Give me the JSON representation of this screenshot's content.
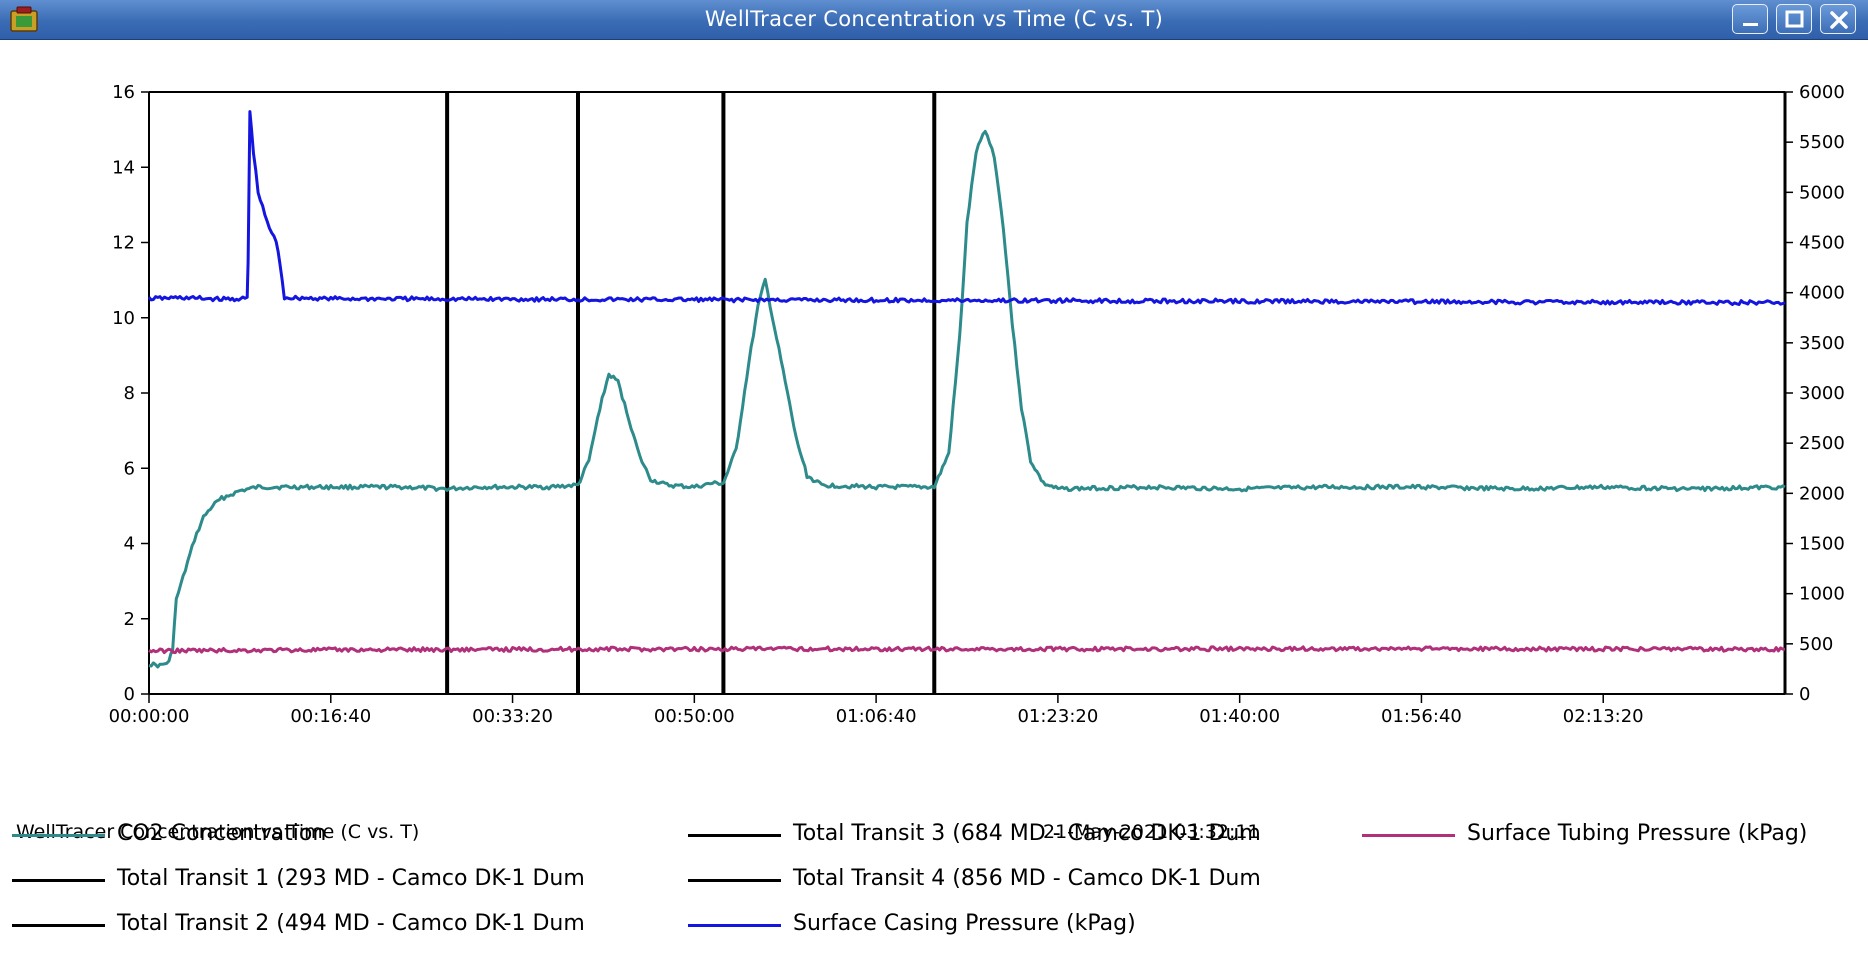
{
  "window": {
    "title": "WellTracer Concentration vs Time (C vs. T)"
  },
  "footer": {
    "title": "WellTracer Concentration vs Time (C vs. T)",
    "timestamp": "21-May-2021 03:32:11"
  },
  "legend": [
    {
      "label": "CO2 Concentration",
      "color": "#2e8b8b"
    },
    {
      "label": "Total Transit 1 (293 MD - Camco DK-1 Dum",
      "color": "#000000"
    },
    {
      "label": "Total Transit 2 (494 MD - Camco DK-1 Dum",
      "color": "#000000"
    },
    {
      "label": "Total Transit 3 (684 MD - Camco DK-1 Dum",
      "color": "#000000"
    },
    {
      "label": "Total Transit 4 (856 MD - Camco DK-1 Dum",
      "color": "#000000"
    },
    {
      "label": "Surface Casing Pressure (kPag)",
      "color": "#1515e0"
    },
    {
      "label": "Surface Tubing Pressure (kPag)",
      "color": "#b0307a"
    }
  ],
  "chart_data": {
    "type": "line",
    "title": "WellTracer Concentration vs Time (C vs. T)",
    "x_unit": "seconds (elapsed, shown as hh:mm:ss)",
    "xlim": [
      0,
      9000
    ],
    "x_ticks": [
      {
        "value": 0,
        "label": "00:00:00"
      },
      {
        "value": 1000,
        "label": "00:16:40"
      },
      {
        "value": 2000,
        "label": "00:33:20"
      },
      {
        "value": 3000,
        "label": "00:50:00"
      },
      {
        "value": 4000,
        "label": "01:06:40"
      },
      {
        "value": 5000,
        "label": "01:23:20"
      },
      {
        "value": 6000,
        "label": "01:40:00"
      },
      {
        "value": 7000,
        "label": "01:56:40"
      },
      {
        "value": 8000,
        "label": "02:13:20"
      }
    ],
    "y_left": {
      "ylim": [
        0,
        16
      ],
      "ticks": [
        "0",
        "2",
        "4",
        "6",
        "8",
        "10",
        "12",
        "14",
        "16"
      ]
    },
    "y_right": {
      "ylim": [
        0,
        6000
      ],
      "ticks": [
        "0",
        "500",
        "1000",
        "1500",
        "2000",
        "2500",
        "3000",
        "3500",
        "4000",
        "4500",
        "5000",
        "5500",
        "6000"
      ]
    },
    "grid": false,
    "vertical_markers": [
      {
        "name": "Total Transit 1 (293 MD - Camco DK-1 Dum",
        "x": 1640
      },
      {
        "name": "Total Transit 2 (494 MD - Camco DK-1 Dum",
        "x": 2360
      },
      {
        "name": "Total Transit 3 (684 MD - Camco DK-1 Dum",
        "x": 3160
      },
      {
        "name": "Total Transit 4 (856 MD - Camco DK-1 Dum",
        "x": 4320
      }
    ],
    "series": [
      {
        "name": "CO2 Concentration",
        "axis": "left",
        "color": "#2e8b8b",
        "points": [
          [
            0,
            0.8
          ],
          [
            60,
            0.75
          ],
          [
            110,
            0.85
          ],
          [
            130,
            1.2
          ],
          [
            150,
            2.5
          ],
          [
            200,
            3.3
          ],
          [
            250,
            4.1
          ],
          [
            300,
            4.7
          ],
          [
            350,
            5.0
          ],
          [
            400,
            5.2
          ],
          [
            450,
            5.3
          ],
          [
            500,
            5.4
          ],
          [
            600,
            5.5
          ],
          [
            800,
            5.5
          ],
          [
            1000,
            5.5
          ],
          [
            1200,
            5.5
          ],
          [
            1400,
            5.5
          ],
          [
            1640,
            5.45
          ],
          [
            1800,
            5.5
          ],
          [
            2000,
            5.5
          ],
          [
            2200,
            5.5
          ],
          [
            2360,
            5.55
          ],
          [
            2420,
            6.2
          ],
          [
            2480,
            7.6
          ],
          [
            2530,
            8.5
          ],
          [
            2580,
            8.3
          ],
          [
            2640,
            7.3
          ],
          [
            2700,
            6.3
          ],
          [
            2760,
            5.7
          ],
          [
            2850,
            5.55
          ],
          [
            3000,
            5.5
          ],
          [
            3100,
            5.6
          ],
          [
            3160,
            5.6
          ],
          [
            3230,
            6.5
          ],
          [
            3300,
            8.8
          ],
          [
            3350,
            10.3
          ],
          [
            3390,
            11.0
          ],
          [
            3430,
            10.0
          ],
          [
            3500,
            8.3
          ],
          [
            3560,
            6.8
          ],
          [
            3620,
            5.8
          ],
          [
            3700,
            5.55
          ],
          [
            4000,
            5.5
          ],
          [
            4200,
            5.5
          ],
          [
            4320,
            5.5
          ],
          [
            4400,
            6.4
          ],
          [
            4460,
            9.5
          ],
          [
            4500,
            12.5
          ],
          [
            4550,
            14.4
          ],
          [
            4600,
            15.0
          ],
          [
            4650,
            14.3
          ],
          [
            4700,
            12.4
          ],
          [
            4750,
            9.8
          ],
          [
            4800,
            7.6
          ],
          [
            4850,
            6.2
          ],
          [
            4920,
            5.6
          ],
          [
            5000,
            5.45
          ],
          [
            5500,
            5.5
          ],
          [
            6000,
            5.45
          ],
          [
            6500,
            5.5
          ],
          [
            7000,
            5.5
          ],
          [
            7500,
            5.45
          ],
          [
            8000,
            5.5
          ],
          [
            8500,
            5.45
          ],
          [
            9000,
            5.5
          ]
        ]
      },
      {
        "name": "Surface Casing Pressure (kPag)",
        "axis": "right",
        "color": "#1515e0",
        "points": [
          [
            0,
            3940
          ],
          [
            170,
            3950
          ],
          [
            400,
            3935
          ],
          [
            540,
            3940
          ],
          [
            545,
            4300
          ],
          [
            555,
            5800
          ],
          [
            575,
            5400
          ],
          [
            600,
            5000
          ],
          [
            650,
            4700
          ],
          [
            700,
            4500
          ],
          [
            720,
            4300
          ],
          [
            745,
            3950
          ],
          [
            1000,
            3940
          ],
          [
            2000,
            3935
          ],
          [
            3000,
            3930
          ],
          [
            4000,
            3925
          ],
          [
            5000,
            3920
          ],
          [
            6000,
            3915
          ],
          [
            7000,
            3910
          ],
          [
            8000,
            3905
          ],
          [
            9000,
            3900
          ]
        ]
      },
      {
        "name": "Surface Tubing Pressure (kPag)",
        "axis": "right",
        "color": "#b0307a",
        "points": [
          [
            0,
            430
          ],
          [
            1000,
            440
          ],
          [
            2000,
            445
          ],
          [
            3000,
            448
          ],
          [
            4000,
            450
          ],
          [
            5000,
            448
          ],
          [
            6000,
            450
          ],
          [
            7000,
            450
          ],
          [
            8000,
            448
          ],
          [
            9000,
            445
          ]
        ]
      }
    ]
  }
}
